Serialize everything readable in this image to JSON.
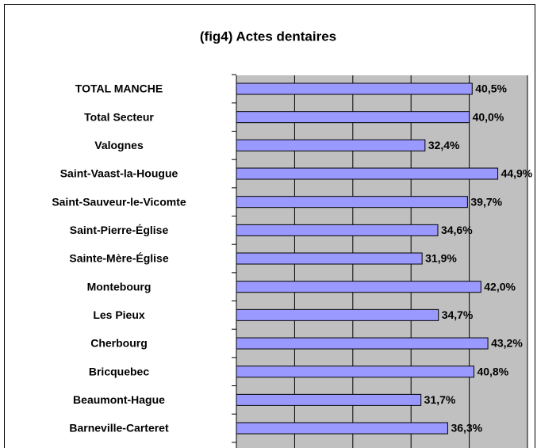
{
  "chart_data": {
    "type": "bar",
    "orientation": "horizontal",
    "title": "(fig4) Actes dentaires",
    "categories": [
      "TOTAL MANCHE",
      "Total Secteur",
      "Valognes",
      "Saint-Vaast-la-Hougue",
      "Saint-Sauveur-le-Vicomte",
      "Saint-Pierre-Église",
      "Sainte-Mère-Église",
      "Montebourg",
      "Les Pieux",
      "Cherbourg",
      "Bricquebec",
      "Beaumont-Hague",
      "Barneville-Carteret"
    ],
    "values": [
      40.5,
      40.0,
      32.4,
      44.9,
      39.7,
      34.6,
      31.9,
      42.0,
      34.7,
      43.2,
      40.8,
      31.7,
      36.3
    ],
    "value_labels": [
      "40,5%",
      "40,0%",
      "32,4%",
      "44,9%",
      "39,7%",
      "34,6%",
      "31,9%",
      "42,0%",
      "34,7%",
      "43,2%",
      "40,8%",
      "31,7%",
      "36,3%"
    ],
    "color": "#9999ff",
    "xlim": [
      0,
      50
    ],
    "xticks": [
      0,
      10,
      20,
      30,
      40,
      50
    ],
    "grid": true
  }
}
